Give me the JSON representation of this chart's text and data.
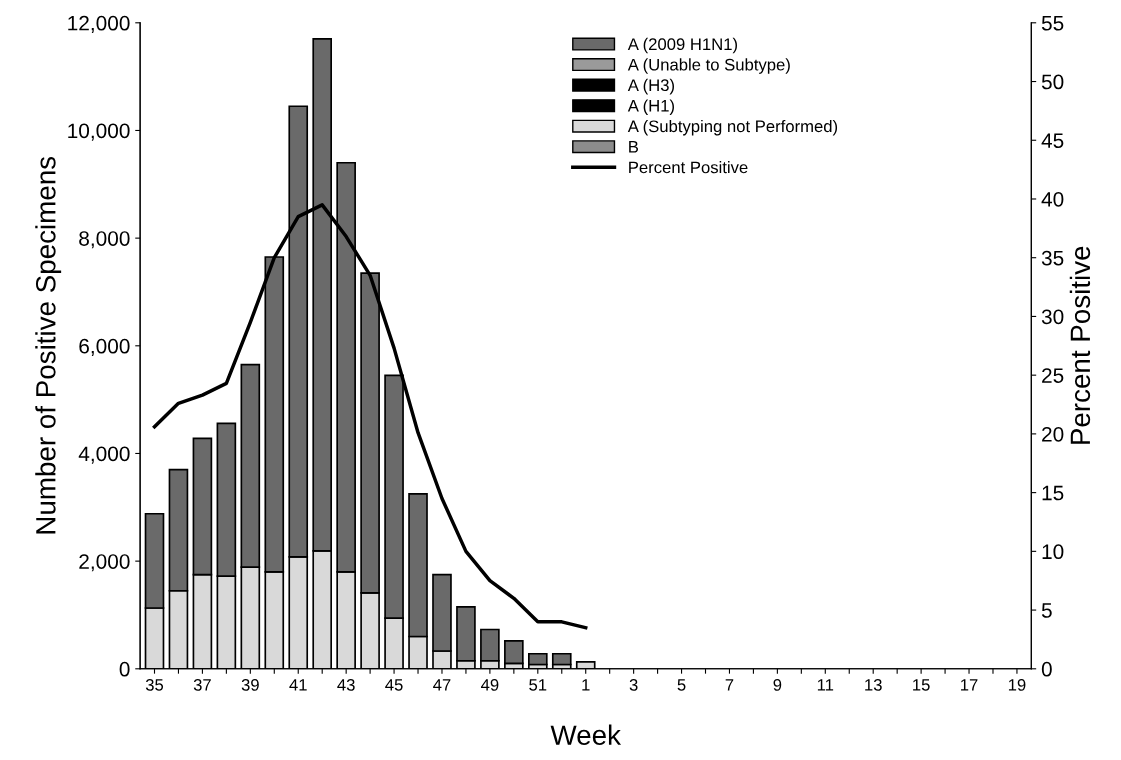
{
  "chart_data": {
    "type": "bar",
    "stacked": true,
    "xlabel": "Week",
    "ylabel": "Number of Positive Specimens",
    "y2label": "Percent Positive",
    "categories": [
      "35",
      null,
      "37",
      null,
      "39",
      null,
      "41",
      null,
      "43",
      null,
      "45",
      null,
      "47",
      null,
      "49",
      null,
      "51",
      null,
      "1",
      null,
      "3",
      null,
      "5",
      null,
      "7",
      null,
      "9",
      null,
      "11",
      null,
      "13",
      null,
      "15",
      null,
      "17",
      null,
      "19"
    ],
    "series": [
      {
        "name": "B",
        "color": "#8c8c8c",
        "values": [
          0,
          0,
          0,
          0,
          0,
          0,
          0,
          0,
          0,
          0,
          0,
          0,
          0,
          0,
          0,
          0,
          0,
          0,
          0,
          0,
          0,
          0,
          0,
          0,
          0,
          0,
          0,
          0,
          0,
          0,
          0,
          0,
          0,
          0,
          0,
          0,
          0
        ]
      },
      {
        "name": "A (Subtyping not Performed)",
        "color": "#d9d9d9",
        "values": [
          1130,
          1450,
          1750,
          1720,
          1890,
          1800,
          2080,
          2190,
          1800,
          1410,
          940,
          600,
          330,
          150,
          150,
          100,
          80,
          80,
          130,
          0,
          0,
          0,
          0,
          0,
          0,
          0,
          0,
          0,
          0,
          0,
          0,
          0,
          0,
          0,
          0,
          0,
          0
        ]
      },
      {
        "name": "A (H1)",
        "color": "#000000",
        "values": [
          0,
          0,
          0,
          0,
          0,
          0,
          0,
          0,
          0,
          0,
          0,
          0,
          0,
          0,
          0,
          0,
          0,
          0,
          0,
          0,
          0,
          0,
          0,
          0,
          0,
          0,
          0,
          0,
          0,
          0,
          0,
          0,
          0,
          0,
          0,
          0,
          0
        ]
      },
      {
        "name": "A (H3)",
        "color": "#000000",
        "values": [
          0,
          0,
          0,
          0,
          0,
          0,
          0,
          0,
          0,
          0,
          0,
          0,
          0,
          0,
          0,
          0,
          0,
          0,
          0,
          0,
          0,
          0,
          0,
          0,
          0,
          0,
          0,
          0,
          0,
          0,
          0,
          0,
          0,
          0,
          0,
          0,
          0
        ]
      },
      {
        "name": "A (Unable to Subtype)",
        "color": "#9a9a9a",
        "values": [
          0,
          0,
          0,
          0,
          0,
          0,
          0,
          0,
          0,
          0,
          0,
          0,
          0,
          0,
          0,
          0,
          0,
          0,
          0,
          0,
          0,
          0,
          0,
          0,
          0,
          0,
          0,
          0,
          0,
          0,
          0,
          0,
          0,
          0,
          0,
          0,
          0
        ]
      },
      {
        "name": "A (2009 H1N1)",
        "color": "#6a6a6a",
        "values": [
          1750,
          2250,
          2530,
          2840,
          3760,
          5850,
          8370,
          9510,
          7600,
          5940,
          4510,
          2650,
          1420,
          1000,
          580,
          420,
          200,
          200,
          0,
          0,
          0,
          0,
          0,
          0,
          0,
          0,
          0,
          0,
          0,
          0,
          0,
          0,
          0,
          0,
          0,
          0,
          0
        ]
      },
      {
        "name": "Percent Positive",
        "type": "line",
        "axis": "y2",
        "color": "#000000",
        "values": [
          20.6,
          22.6,
          23.3,
          24.3,
          29.5,
          35,
          38.5,
          39.5,
          36.8,
          33.5,
          27.3,
          20.1,
          14.5,
          10,
          7.5,
          6,
          4,
          4,
          3.5,
          null,
          null,
          null,
          null,
          null,
          null,
          null,
          null,
          null,
          null,
          null,
          null,
          null,
          null,
          null,
          null,
          null,
          null
        ]
      }
    ],
    "ylim": [
      0,
      12000
    ],
    "yticks": [
      0,
      {
        "value": 2000,
        "label": "2,000"
      },
      {
        "value": 4000,
        "label": "4,000"
      },
      {
        "value": 6000,
        "label": "6,000"
      },
      {
        "value": 8000,
        "label": "8,000"
      },
      {
        "value": 10000,
        "label": "10,000"
      },
      {
        "value": 12000,
        "label": "12,000"
      }
    ],
    "y2lim": [
      0,
      55
    ],
    "y2ticks": [
      0,
      5,
      10,
      15,
      20,
      25,
      30,
      35,
      40,
      45,
      50,
      55
    ],
    "legend": "top right",
    "grid": false
  }
}
